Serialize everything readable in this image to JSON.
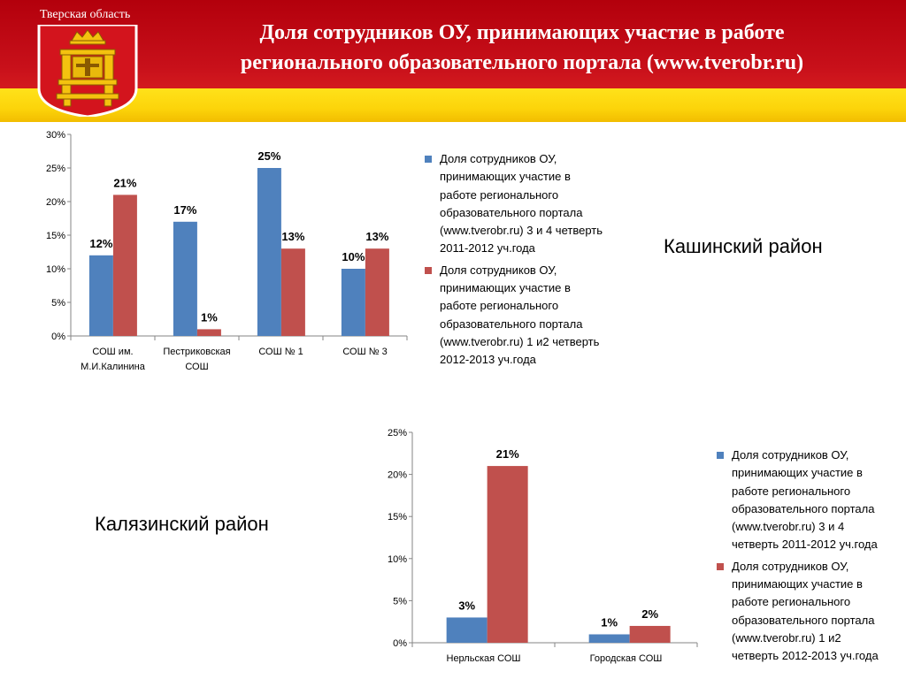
{
  "header": {
    "region": "Тверская область",
    "title_line1": "Доля сотрудников ОУ, принимающих участие в работе",
    "title_line2": "регионального образовательного портала (www.tverobr.ru)"
  },
  "colors": {
    "series1": "#4f81bd",
    "series2": "#c0504d",
    "header_red": "#c8101a",
    "header_yellow": "#fcd40a"
  },
  "icons": {
    "coat_of_arms": "tver-coat-of-arms-icon"
  },
  "chart_data": [
    {
      "type": "bar",
      "region_label": "Кашинский район",
      "categories": [
        "СОШ им.\nМ.И.Калинина",
        "Пестриковская\nСОШ",
        "СОШ № 1",
        "СОШ № 3"
      ],
      "series": [
        {
          "name": "Доля сотрудников ОУ, принимающих участие в работе регионального образовательного портала (www.tverobr.ru) 3 и 4 четверть 2011-2012 уч.года",
          "values": [
            12,
            17,
            25,
            10
          ]
        },
        {
          "name": "Доля сотрудников ОУ, принимающих участие в работе регионального образовательного портала (www.tverobr.ru) 1 и2 четверть 2012-2013 уч.года",
          "values": [
            21,
            1,
            13,
            13
          ]
        }
      ],
      "ylim": [
        0,
        30
      ],
      "yticks": [
        0,
        5,
        10,
        15,
        20,
        25,
        30
      ],
      "data_labels": true,
      "grid": false,
      "legend": "right",
      "legend_lines": [
        [
          "Доля сотрудников ОУ,",
          "принимающих участие в",
          "работе регионального",
          "образовательного портала",
          "(www.tverobr.ru) 3 и 4 четверть",
          "2011-2012 уч.года"
        ],
        [
          "Доля сотрудников ОУ,",
          "принимающих участие в",
          "работе регионального",
          "образовательного портала",
          "(www.tverobr.ru) 1 и2 четверть",
          "2012-2013 уч.года"
        ]
      ]
    },
    {
      "type": "bar",
      "region_label": "Калязинский район",
      "categories": [
        "Нерльская  СОШ",
        "Городская  СОШ"
      ],
      "series": [
        {
          "name": "Доля сотрудников ОУ, принимающих участие в работе регионального образовательного портала (www.tverobr.ru) 3 и 4 четверть 2011-2012 уч.года",
          "values": [
            3,
            1
          ]
        },
        {
          "name": "Доля сотрудников ОУ, принимающих участие в работе регионального образовательного портала (www.tverobr.ru) 1 и2 четверть 2012-2013 уч.года",
          "values": [
            21,
            2
          ]
        }
      ],
      "ylim": [
        0,
        25
      ],
      "yticks": [
        0,
        5,
        10,
        15,
        20,
        25
      ],
      "data_labels": true,
      "grid": false,
      "legend": "right",
      "legend_lines": [
        [
          "Доля сотрудников ОУ,",
          "принимающих участие в",
          "работе регионального",
          "образовательного портала",
          "(www.tverobr.ru) 3 и 4",
          "четверть 2011-2012 уч.года"
        ],
        [
          "Доля сотрудников ОУ,",
          "принимающих участие в",
          "работе регионального",
          "образовательного портала",
          "(www.tverobr.ru) 1 и2",
          "четверть 2012-2013 уч.года"
        ]
      ]
    }
  ]
}
